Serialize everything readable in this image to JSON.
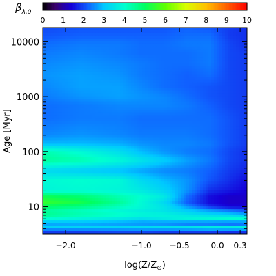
{
  "chart_data": {
    "type": "heatmap",
    "colorbar": {
      "label": "β",
      "label_sub": "λ,0",
      "range": [
        0,
        10
      ],
      "ticks": [
        "0",
        "1",
        "2",
        "3",
        "4",
        "5",
        "6",
        "7",
        "8",
        "9",
        "10"
      ],
      "colormap_stops": [
        {
          "v": 0.0,
          "color": "#000000"
        },
        {
          "v": 0.6,
          "color": "#3a006a"
        },
        {
          "v": 1.4,
          "color": "#1500d8"
        },
        {
          "v": 2.2,
          "color": "#1060ff"
        },
        {
          "v": 3.0,
          "color": "#00c8ff"
        },
        {
          "v": 4.0,
          "color": "#00ffd0"
        },
        {
          "v": 5.0,
          "color": "#00ff60"
        },
        {
          "v": 6.0,
          "color": "#60ff00"
        },
        {
          "v": 7.0,
          "color": "#d8ff00"
        },
        {
          "v": 8.0,
          "color": "#ffc000"
        },
        {
          "v": 9.0,
          "color": "#ff6000"
        },
        {
          "v": 10.0,
          "color": "#ff0000"
        }
      ]
    },
    "x_axis": {
      "label": "log(Z/Z",
      "label_sub": "⊙",
      "label_end": ")",
      "range": [
        -2.3,
        0.39
      ],
      "ticks": [
        {
          "v": -2.0,
          "label": "−2.0"
        },
        {
          "v": -1.0,
          "label": "−1.0"
        },
        {
          "v": -0.5,
          "label": "−0.5"
        },
        {
          "v": 0.0,
          "label": "0.0"
        },
        {
          "v": 0.3,
          "label": "0.3"
        }
      ]
    },
    "y_axis": {
      "label": "Age [Myr]",
      "scale": "log",
      "range": [
        3.2,
        18000
      ],
      "ticks": [
        {
          "v": 10,
          "label": "10"
        },
        {
          "v": 100,
          "label": "100"
        },
        {
          "v": 1000,
          "label": "1000"
        },
        {
          "v": 10000,
          "label": "10000"
        }
      ]
    },
    "z_grid": {
      "x": [
        -2.3,
        -1.8,
        -1.3,
        -1.0,
        -0.7,
        -0.4,
        -0.1,
        0.15,
        0.39
      ],
      "y": [
        3.5,
        4.2,
        5.0,
        6.0,
        7.0,
        8.5,
        10,
        12,
        15,
        20,
        30,
        45,
        70,
        100,
        140,
        200,
        400,
        700,
        1000,
        1500,
        2500,
        4000,
        6000,
        9000,
        13000,
        18000
      ],
      "values": [
        [
          1.9,
          1.9,
          2.0,
          2.0,
          1.9,
          1.9,
          1.9,
          1.8,
          1.8
        ],
        [
          3.2,
          3.3,
          3.3,
          3.4,
          3.5,
          3.6,
          3.8,
          3.8,
          3.9
        ],
        [
          2.6,
          2.6,
          2.5,
          2.4,
          2.3,
          2.1,
          2.0,
          1.9,
          1.9
        ],
        [
          4.0,
          3.8,
          3.6,
          3.4,
          3.6,
          3.8,
          3.9,
          4.0,
          4.0
        ],
        [
          4.6,
          4.3,
          4.1,
          3.9,
          3.8,
          3.6,
          3.4,
          3.3,
          3.0
        ],
        [
          4.5,
          4.2,
          3.9,
          3.7,
          3.5,
          3.1,
          2.7,
          2.4,
          2.1
        ],
        [
          5.0,
          4.7,
          4.2,
          3.9,
          3.5,
          2.6,
          1.8,
          1.4,
          1.4
        ],
        [
          5.5,
          5.2,
          4.5,
          3.9,
          3.3,
          2.2,
          1.5,
          1.3,
          1.3
        ],
        [
          5.2,
          4.9,
          4.3,
          4.0,
          3.6,
          2.3,
          1.5,
          1.3,
          1.3
        ],
        [
          3.8,
          3.9,
          3.8,
          3.6,
          3.2,
          2.6,
          1.8,
          1.6,
          1.4
        ],
        [
          3.9,
          4.0,
          3.9,
          3.3,
          2.9,
          2.6,
          2.1,
          1.8,
          1.5
        ],
        [
          3.3,
          3.1,
          2.9,
          2.7,
          2.5,
          2.4,
          2.2,
          1.9,
          1.7
        ],
        [
          4.5,
          4.3,
          3.9,
          3.5,
          3.1,
          2.7,
          2.4,
          2.0,
          1.8
        ],
        [
          4.3,
          3.9,
          3.4,
          2.9,
          2.6,
          2.4,
          2.3,
          2.0,
          1.8
        ],
        [
          2.9,
          2.9,
          2.8,
          2.6,
          2.5,
          2.5,
          2.4,
          2.1,
          1.9
        ],
        [
          2.5,
          2.6,
          2.5,
          2.4,
          2.4,
          2.4,
          2.3,
          2.1,
          1.9
        ],
        [
          2.3,
          2.4,
          2.4,
          2.3,
          2.3,
          2.3,
          2.3,
          2.1,
          1.9
        ],
        [
          2.3,
          2.4,
          2.5,
          2.5,
          2.5,
          2.4,
          2.2,
          2.0,
          1.9
        ],
        [
          2.4,
          2.6,
          2.7,
          2.6,
          2.5,
          2.3,
          2.1,
          2.0,
          1.9
        ],
        [
          2.5,
          2.7,
          2.7,
          2.5,
          2.3,
          2.2,
          2.1,
          2.0,
          1.9
        ],
        [
          2.6,
          2.7,
          2.6,
          2.4,
          2.3,
          2.2,
          2.3,
          2.0,
          1.9
        ],
        [
          2.5,
          2.6,
          2.5,
          2.4,
          2.3,
          2.3,
          2.4,
          2.0,
          1.9
        ],
        [
          2.4,
          2.5,
          2.4,
          2.3,
          2.3,
          2.3,
          2.4,
          2.0,
          1.9
        ],
        [
          2.3,
          2.4,
          2.4,
          2.3,
          2.3,
          2.4,
          2.4,
          2.0,
          1.8
        ],
        [
          2.1,
          2.2,
          2.2,
          2.2,
          2.2,
          2.3,
          2.3,
          1.9,
          1.8
        ],
        [
          2.0,
          2.1,
          2.1,
          2.1,
          2.1,
          2.2,
          2.1,
          1.9,
          1.8
        ]
      ]
    }
  }
}
